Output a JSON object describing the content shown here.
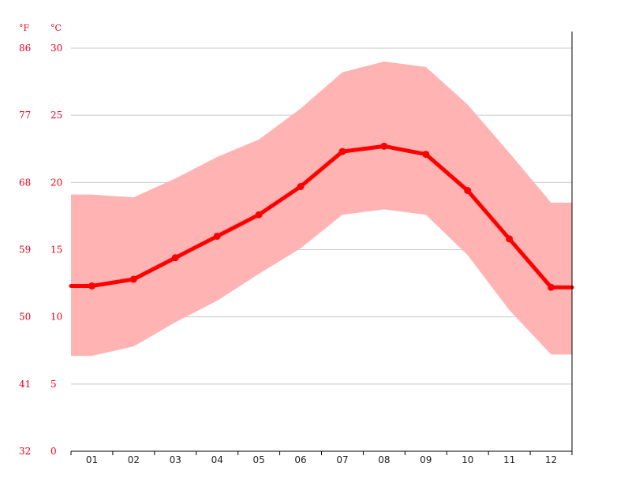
{
  "chart_data": {
    "type": "line",
    "title": "",
    "xlabel": "",
    "ylabel": "",
    "units": {
      "left": "°F",
      "right": "°C"
    },
    "categories": [
      "01",
      "02",
      "03",
      "04",
      "05",
      "06",
      "07",
      "08",
      "09",
      "10",
      "11",
      "12"
    ],
    "yticks_c": [
      "0",
      "5",
      "10",
      "15",
      "20",
      "25",
      "30"
    ],
    "yticks_f": [
      "32",
      "41",
      "50",
      "59",
      "68",
      "77",
      "86"
    ],
    "ylim": [
      0,
      30
    ],
    "grid": true,
    "series": [
      {
        "values": [
          12.3,
          12.8,
          14.4,
          16.0,
          17.6,
          19.7,
          22.3,
          22.7,
          22.1,
          19.4,
          15.8,
          12.2
        ]
      }
    ],
    "range_band": {
      "upper": [
        19.1,
        18.9,
        20.3,
        21.9,
        23.2,
        25.5,
        28.2,
        29.0,
        28.6,
        25.8,
        22.2,
        18.5
      ],
      "lower": [
        7.1,
        7.8,
        9.6,
        11.2,
        13.2,
        15.1,
        17.6,
        18.0,
        17.6,
        14.6,
        10.5,
        7.2
      ]
    },
    "colors": {
      "line": "#ff0000",
      "band": "#ffb3b3",
      "grid": "#c8c8c8",
      "axis": "#000000",
      "tick_label": "#e8001c"
    }
  }
}
